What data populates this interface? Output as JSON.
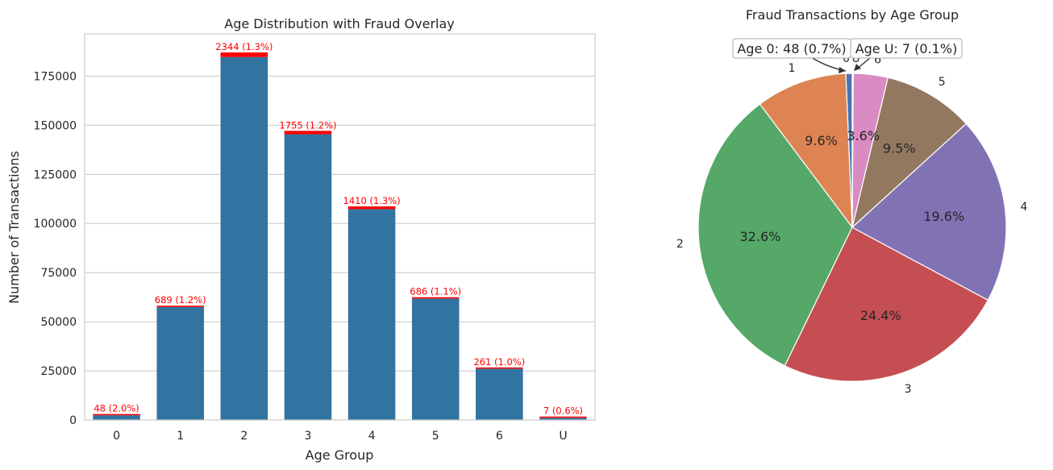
{
  "chart_data": [
    {
      "type": "bar",
      "title": "Age Distribution with Fraud Overlay",
      "xlabel": "Age Group",
      "ylabel": "Number of Transactions",
      "categories": [
        "0",
        "1",
        "2",
        "3",
        "4",
        "5",
        "6",
        "U"
      ],
      "ylim": [
        0,
        196500
      ],
      "yticks": [
        0,
        25000,
        50000,
        75000,
        100000,
        125000,
        150000,
        175000
      ],
      "ytick_labels": [
        "0",
        "25000",
        "50000",
        "75000",
        "100000",
        "125000",
        "150000",
        "175000"
      ],
      "grid": "horizontal",
      "series": [
        {
          "values": [
            2400,
            57500,
            184700,
            145400,
            107300,
            61800,
            26100,
            1100
          ]
        },
        {
          "values": [
            48,
            689,
            2344,
            1755,
            1410,
            686,
            261,
            7
          ]
        }
      ],
      "data_labels": [
        "48 (2.0%)",
        "689 (1.2%)",
        "2344 (1.3%)",
        "1755 (1.2%)",
        "1410 (1.3%)",
        "686 (1.1%)",
        "261 (1.0%)",
        "7 (0.6%)"
      ],
      "colors": {
        "total": "#3274a1",
        "fraud": "#ff0000",
        "label": "#ff0000"
      }
    },
    {
      "type": "pie",
      "title": "Fraud Transactions by Age Group",
      "labels": [
        "0",
        "1",
        "2",
        "3",
        "4",
        "5",
        "6",
        "U"
      ],
      "values": [
        48,
        689,
        2344,
        1755,
        1410,
        686,
        261,
        7
      ],
      "autopct": [
        "",
        "9.6%",
        "32.6%",
        "24.4%",
        "19.6%",
        "9.5%",
        "3.6%",
        ""
      ],
      "colors": [
        "#4c72b0",
        "#dd8452",
        "#55a868",
        "#c44e52",
        "#8172b3",
        "#937860",
        "#da8bc3",
        "#8c8c8c"
      ],
      "annotations": [
        "Age 0: 48 (0.7%)",
        "Age U: 7 (0.1%)"
      ]
    }
  ]
}
